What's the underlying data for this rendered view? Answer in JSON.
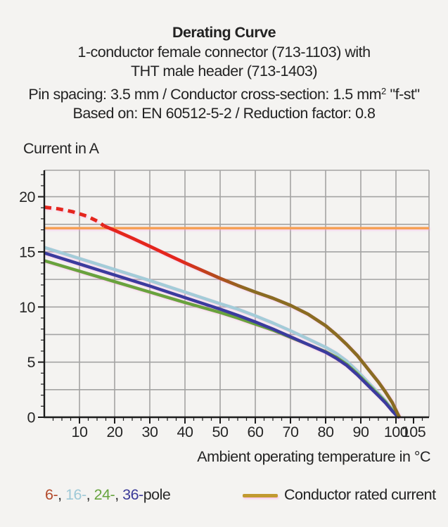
{
  "header": {
    "title": "Derating Curve",
    "line2": "1-conductor female connector (713-1103) with",
    "line3": "THT male header (713-1403)",
    "line4_pre": "Pin spacing: 3.5 mm / Conductor cross-section: 1.5 mm",
    "line4_sup": "2",
    "line4_post": " \"f-st\"",
    "line5": "Based on: EN 60512-5-2 / Reduction factor: 0.8"
  },
  "axes": {
    "ylabel": "Current in A",
    "xlabel": "Ambient operating temperature in °C"
  },
  "legend": {
    "pole_parts": [
      {
        "text": "6-",
        "color": "#b3492a"
      },
      {
        "text": ", ",
        "color": "#2a2a2a"
      },
      {
        "text": "16-",
        "color": "#9fc9d7"
      },
      {
        "text": ", ",
        "color": "#2a2a2a"
      },
      {
        "text": "24-",
        "color": "#67a43e"
      },
      {
        "text": ", ",
        "color": "#2a2a2a"
      },
      {
        "text": "36-",
        "color": "#3b3a98"
      },
      {
        "text": "pole",
        "color": "#2a2a2a"
      }
    ],
    "rated_label": "Conductor rated current",
    "rated_swatch_color": "#c19a30"
  },
  "chart_data": {
    "type": "line",
    "title": "Derating Curve",
    "xlabel": "Ambient operating temperature in °C",
    "ylabel": "Current in A",
    "xlim": [
      0,
      109.4
    ],
    "ylim": [
      0,
      22.4
    ],
    "x_major_ticks": [
      10,
      20,
      30,
      40,
      50,
      60,
      70,
      80,
      90,
      100,
      105
    ],
    "x_minor_step": 2.5,
    "y_major_ticks": [
      0,
      5,
      10,
      15,
      20
    ],
    "y_minor_step": 1,
    "grid": {
      "x_lines": [
        10,
        20,
        30,
        40,
        50,
        60,
        70,
        80,
        90,
        100
      ],
      "y_lines": [
        2.5,
        5,
        7.5,
        10,
        12.5,
        15,
        17.5,
        20
      ],
      "color": "#a3a3a3"
    },
    "legend_position": "bottom",
    "series": [
      {
        "name": "Conductor rated current",
        "style": "solid",
        "color": "#f5a055",
        "width": 3.5,
        "points": [
          [
            0,
            17.15
          ],
          [
            109.4,
            17.15
          ]
        ]
      },
      {
        "name": "16-pole",
        "style": "solid",
        "color": "#a3ccd8",
        "width": 4.5,
        "points": [
          [
            0,
            15.4
          ],
          [
            10,
            14.4
          ],
          [
            20,
            13.4
          ],
          [
            30,
            12.4
          ],
          [
            40,
            11.35
          ],
          [
            50,
            10.3
          ],
          [
            55,
            9.8
          ],
          [
            60,
            9.2
          ],
          [
            65,
            8.55
          ],
          [
            70,
            7.85
          ],
          [
            75,
            7.1
          ],
          [
            80,
            6.35
          ],
          [
            83,
            5.8
          ],
          [
            86,
            5.1
          ],
          [
            89,
            4.2
          ],
          [
            92,
            3.2
          ],
          [
            95,
            2.2
          ],
          [
            97,
            1.5
          ],
          [
            99,
            0.7
          ],
          [
            100.5,
            0.1
          ],
          [
            101,
            0
          ]
        ]
      },
      {
        "name": "24-pole",
        "style": "solid",
        "color": "#69a23c",
        "width": 4.5,
        "points": [
          [
            0,
            14.2
          ],
          [
            10,
            13.25
          ],
          [
            20,
            12.3
          ],
          [
            30,
            11.35
          ],
          [
            40,
            10.4
          ],
          [
            50,
            9.5
          ],
          [
            55,
            9.0
          ],
          [
            60,
            8.45
          ],
          [
            65,
            7.9
          ],
          [
            70,
            7.25
          ],
          [
            75,
            6.6
          ],
          [
            80,
            5.95
          ],
          [
            83,
            5.45
          ],
          [
            86,
            4.8
          ],
          [
            89,
            3.95
          ],
          [
            92,
            3.0
          ],
          [
            95,
            2.05
          ],
          [
            97,
            1.4
          ],
          [
            99,
            0.6
          ],
          [
            100.5,
            0.1
          ],
          [
            101,
            0
          ]
        ]
      },
      {
        "name": "36-pole",
        "style": "solid",
        "color": "#3a3b9e",
        "width": 4.5,
        "points": [
          [
            0,
            14.9
          ],
          [
            10,
            13.9
          ],
          [
            20,
            12.9
          ],
          [
            30,
            11.9
          ],
          [
            40,
            10.85
          ],
          [
            50,
            9.8
          ],
          [
            55,
            9.25
          ],
          [
            60,
            8.65
          ],
          [
            65,
            8.0
          ],
          [
            70,
            7.3
          ],
          [
            75,
            6.6
          ],
          [
            80,
            5.9
          ],
          [
            83,
            5.35
          ],
          [
            86,
            4.7
          ],
          [
            89,
            3.85
          ],
          [
            92,
            2.9
          ],
          [
            95,
            1.95
          ],
          [
            97,
            1.3
          ],
          [
            99,
            0.55
          ],
          [
            100.5,
            0.05
          ],
          [
            101,
            0
          ]
        ]
      },
      {
        "name": "6-pole",
        "style": "solid",
        "color": "gradient-red-brown",
        "color_start": "#e4261d",
        "color_end": "#8a6c20",
        "width": 4.8,
        "points": [
          [
            17,
            17.35
          ],
          [
            20,
            16.95
          ],
          [
            25,
            16.25
          ],
          [
            30,
            15.5
          ],
          [
            35,
            14.75
          ],
          [
            40,
            14.0
          ],
          [
            45,
            13.3
          ],
          [
            50,
            12.6
          ],
          [
            55,
            11.95
          ],
          [
            60,
            11.35
          ],
          [
            65,
            10.8
          ],
          [
            70,
            10.15
          ],
          [
            75,
            9.35
          ],
          [
            80,
            8.3
          ],
          [
            83,
            7.5
          ],
          [
            86,
            6.6
          ],
          [
            89,
            5.6
          ],
          [
            92,
            4.4
          ],
          [
            95,
            3.2
          ],
          [
            97,
            2.3
          ],
          [
            99,
            1.3
          ],
          [
            100.5,
            0.3
          ],
          [
            101,
            0
          ]
        ]
      },
      {
        "name": "6-pole-above-rated",
        "style": "dashed",
        "color": "#e4261d",
        "width": 5,
        "dash": "10 7",
        "points": [
          [
            0,
            19.05
          ],
          [
            4,
            18.9
          ],
          [
            8,
            18.65
          ],
          [
            12,
            18.25
          ],
          [
            15,
            17.8
          ],
          [
            17,
            17.35
          ]
        ]
      }
    ]
  }
}
